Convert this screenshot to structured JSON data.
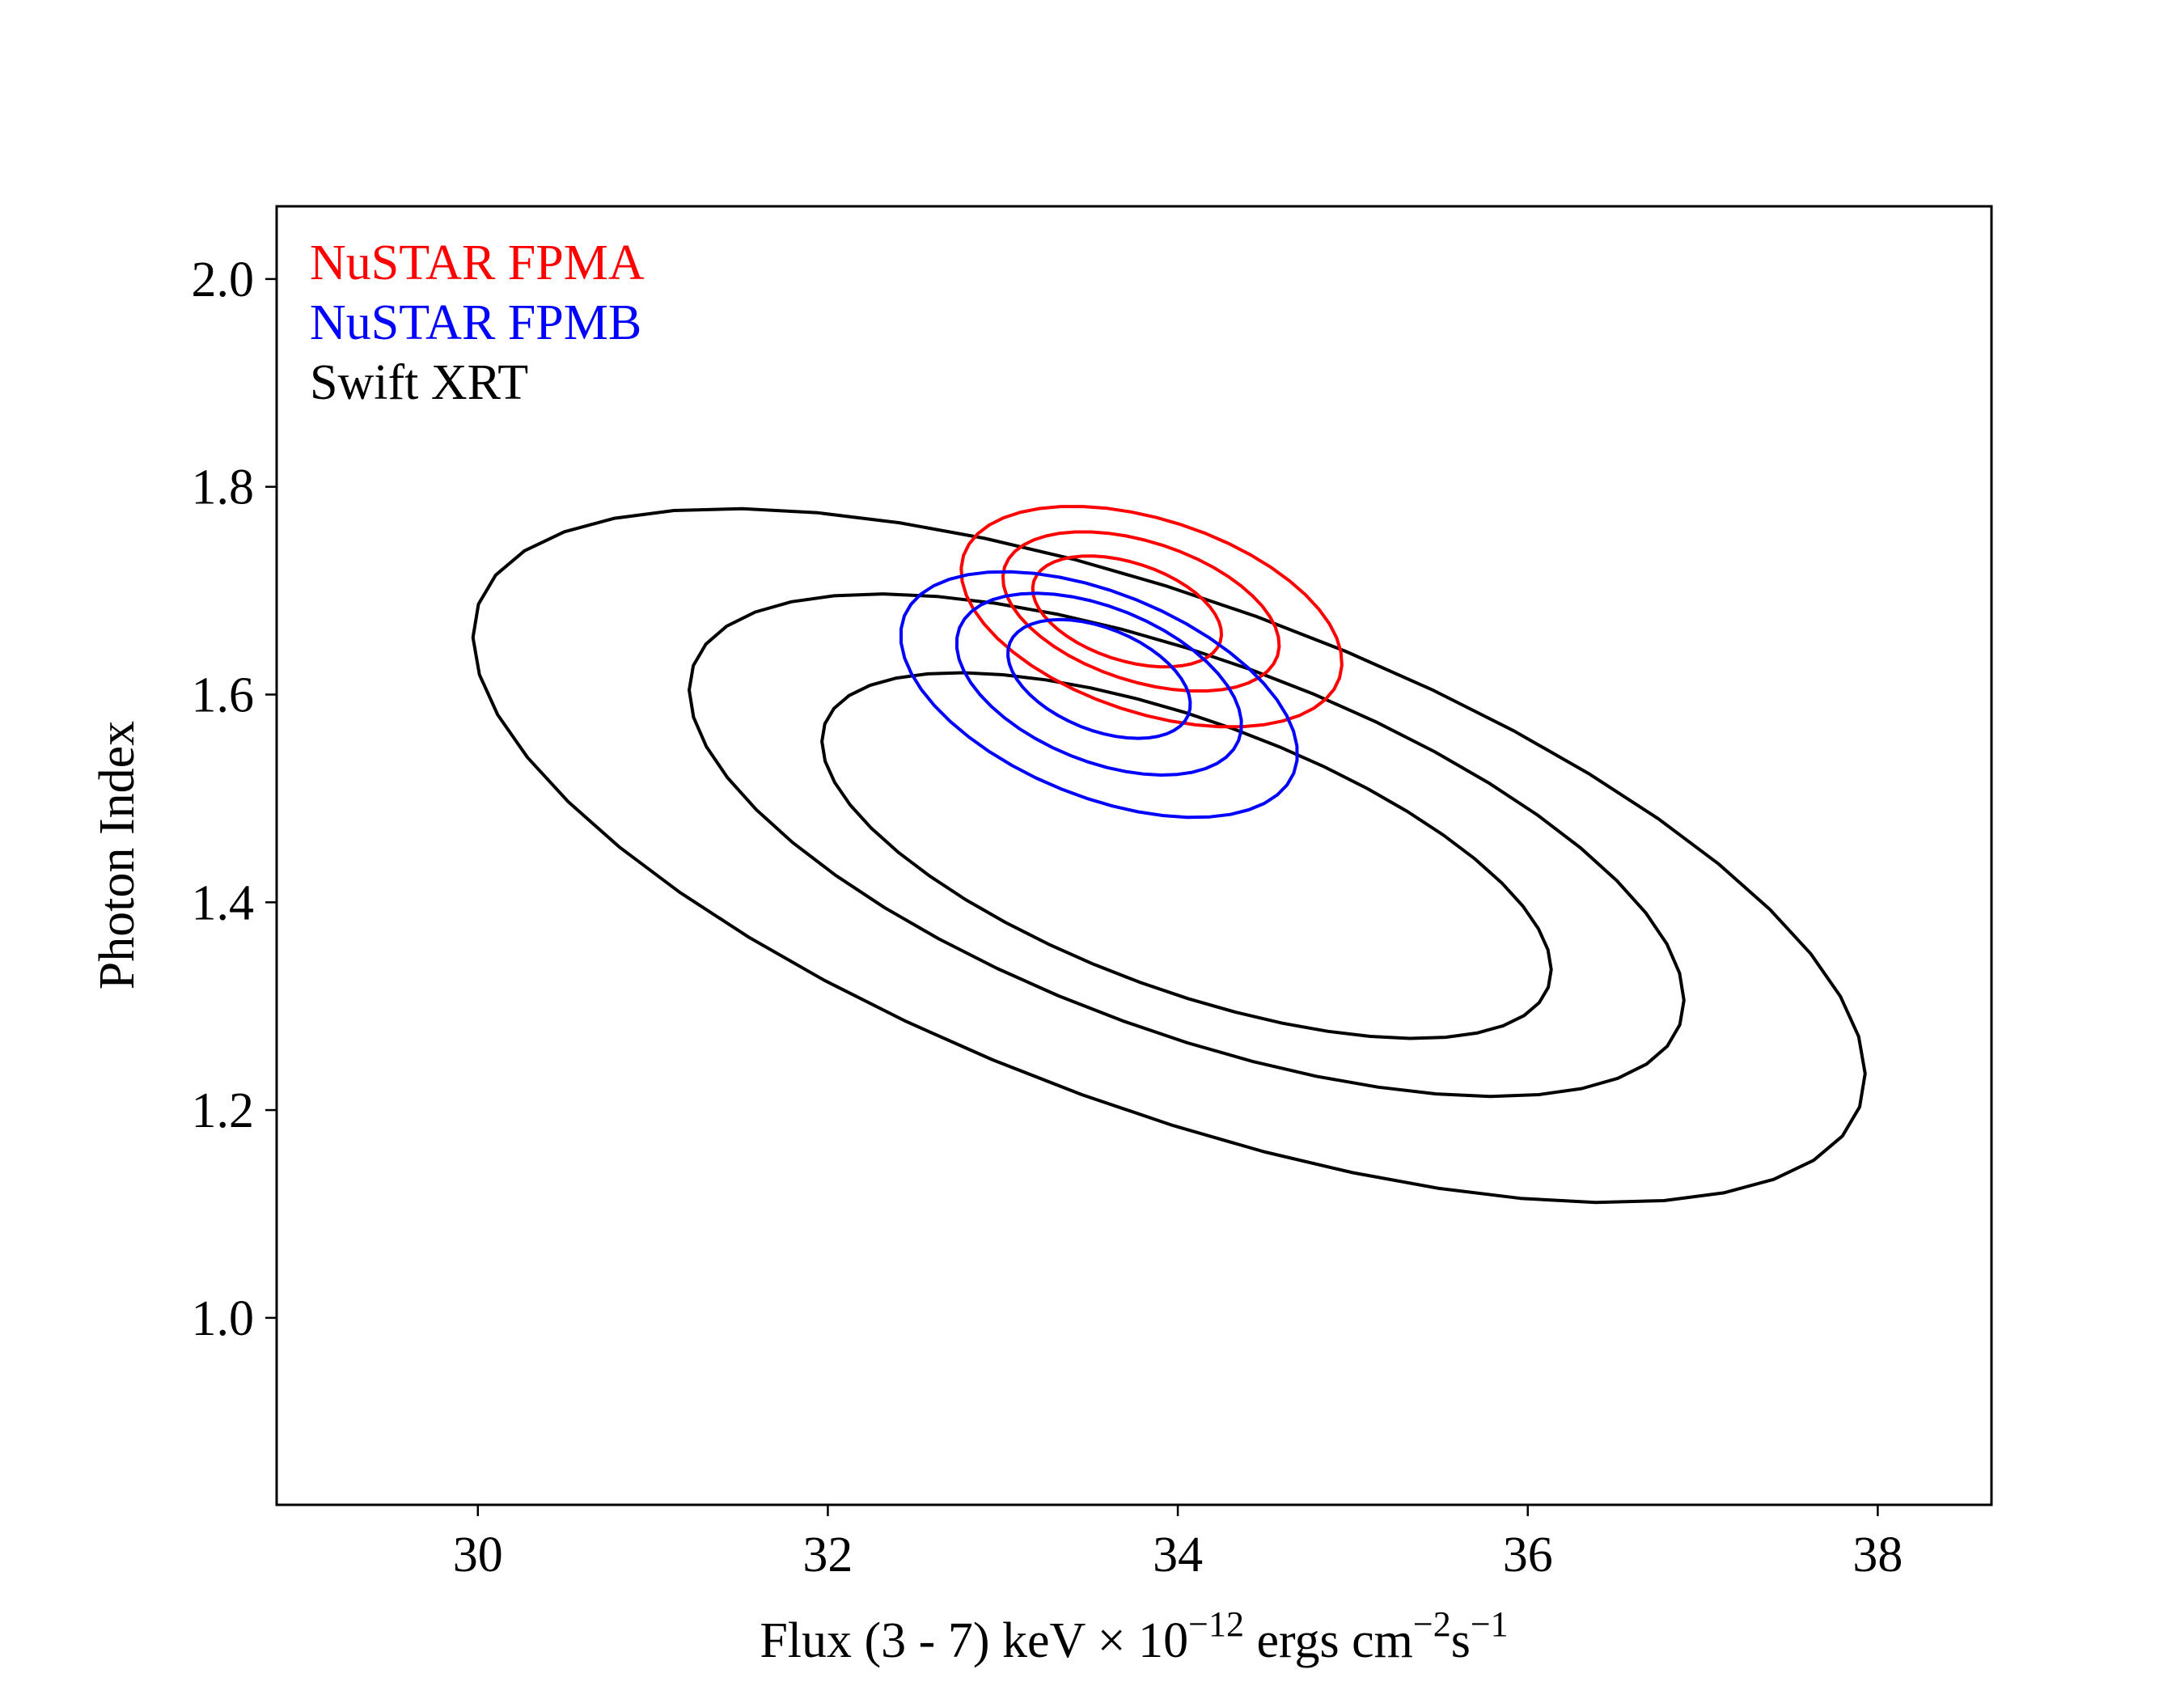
{
  "chart_data": {
    "type": "contour",
    "title": "",
    "xlabel": {
      "main": "Flux (3 - 7) keV × 10",
      "exp1": "−12",
      "mid": " ergs cm",
      "exp2": "−2",
      "mid2": "s",
      "exp3": "−1"
    },
    "ylabel": "Photon Index",
    "xlim": [
      28.85,
      38.65
    ],
    "ylim": [
      0.82,
      2.07
    ],
    "xticks": [
      30,
      32,
      34,
      36,
      38
    ],
    "yticks": [
      1.0,
      1.2,
      1.4,
      1.6,
      1.8,
      2.0
    ],
    "xtick_labels": [
      "30",
      "32",
      "34",
      "36",
      "38"
    ],
    "ytick_labels": [
      "1.0",
      "1.2",
      "1.4",
      "1.6",
      "1.8",
      "2.0"
    ],
    "grid": false,
    "legend_position": "top-left",
    "series": [
      {
        "name": "NuSTAR FPMA",
        "color": "#ff0000",
        "contours": [
          {
            "center": [
              33.71,
              1.68
            ],
            "sx": 0.56,
            "sy": 0.047,
            "tilt_deg": 18
          },
          {
            "center": [
              33.79,
              1.68
            ],
            "sx": 0.82,
            "sy": 0.067,
            "tilt_deg": 18
          },
          {
            "center": [
              33.85,
              1.675
            ],
            "sx": 1.13,
            "sy": 0.093,
            "tilt_deg": 18
          }
        ]
      },
      {
        "name": "NuSTAR FPMB",
        "color": "#0000ff",
        "contours": [
          {
            "center": [
              33.55,
              1.615
            ],
            "sx": 0.55,
            "sy": 0.049,
            "tilt_deg": 22
          },
          {
            "center": [
              33.55,
              1.61
            ],
            "sx": 0.86,
            "sy": 0.074,
            "tilt_deg": 22
          },
          {
            "center": [
              33.55,
              1.6
            ],
            "sx": 1.2,
            "sy": 0.098,
            "tilt_deg": 22
          }
        ]
      },
      {
        "name": "Swift XRT",
        "color": "#000000",
        "contours": [
          {
            "center": [
              34.05,
              1.445
            ],
            "sx": 2.2,
            "sy": 0.13,
            "tilt_deg": 20
          },
          {
            "center": [
              34.05,
              1.455
            ],
            "sx": 3.0,
            "sy": 0.18,
            "tilt_deg": 20
          },
          {
            "center": [
              33.95,
              1.445
            ],
            "sx": 4.2,
            "sy": 0.245,
            "tilt_deg": 20
          }
        ]
      }
    ]
  }
}
